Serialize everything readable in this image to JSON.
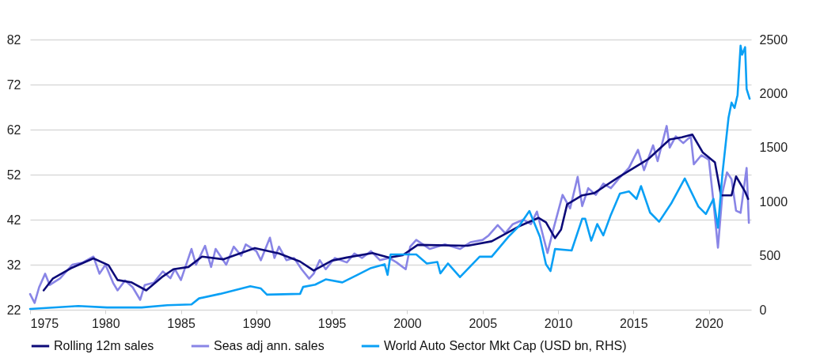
{
  "chart_data": {
    "type": "line",
    "xlim": [
      1975,
      2022.8
    ],
    "xticks": [
      1975,
      1980,
      1985,
      1990,
      1995,
      2000,
      2005,
      2010,
      2015,
      2020
    ],
    "ylim": [
      22,
      82
    ],
    "yticks": [
      22,
      32,
      42,
      52,
      62,
      72,
      82
    ],
    "y2lim": [
      0,
      2500
    ],
    "y2ticks": [
      0,
      500,
      1000,
      1500,
      2000,
      2500
    ],
    "grid": "y",
    "legend": "bottom",
    "line_style": "solid",
    "series": [
      {
        "name": "Rolling 12m sales",
        "color": "#0c0a78",
        "x": [
          1975.9,
          1976.5,
          1977.7,
          1979.2,
          1980.2,
          1980.8,
          1981.7,
          1982.7,
          1983.8,
          1984.5,
          1985.5,
          1986.4,
          1987.8,
          1989.9,
          1991.5,
          1992.9,
          1993.8,
          1995.0,
          1996.0,
          1997.7,
          1998.8,
          1999.7,
          2000.7,
          2004.0,
          2005.6,
          2007.4,
          2008.7,
          2009.2,
          2009.8,
          2010.2,
          2010.6,
          2011.6,
          2012.4,
          2014.0,
          2016.0,
          2017.4,
          2018.2,
          2018.9,
          2019.6,
          2020.4,
          2020.8,
          2021.5,
          2021.8,
          2022.4,
          2022.6
        ],
        "values": [
          26.3,
          28.9,
          31.2,
          33.4,
          31.9,
          28.6,
          28.1,
          26.3,
          29.4,
          31.0,
          31.5,
          33.8,
          33.2,
          35.7,
          34.5,
          32.7,
          30.7,
          32.9,
          33.6,
          34.6,
          33.6,
          34.1,
          36.4,
          36.2,
          37.2,
          40.5,
          42.4,
          41.4,
          37.9,
          39.8,
          45.4,
          47.4,
          47.9,
          51.4,
          55.5,
          59.8,
          60.3,
          60.9,
          56.9,
          54.7,
          47.4,
          47.4,
          51.6,
          48.2,
          46.6
        ]
      },
      {
        "name": "Seas adj ann. sales",
        "color": "#8985e6",
        "x": [
          1975.0,
          1975.3,
          1975.6,
          1976.0,
          1976.3,
          1977.0,
          1977.8,
          1978.5,
          1979.2,
          1979.6,
          1980.0,
          1980.5,
          1980.8,
          1981.3,
          1981.8,
          1982.3,
          1982.6,
          1983.2,
          1983.8,
          1984.3,
          1984.6,
          1985.0,
          1985.7,
          1986.0,
          1986.6,
          1987.0,
          1987.3,
          1988.0,
          1988.5,
          1989.0,
          1989.3,
          1990.0,
          1990.3,
          1990.9,
          1991.2,
          1991.5,
          1992.0,
          1992.5,
          1993.0,
          1993.5,
          1993.8,
          1994.2,
          1994.6,
          1995.2,
          1996.0,
          1996.5,
          1997.0,
          1997.6,
          1998.2,
          1998.8,
          1999.3,
          1999.9,
          2000.2,
          2000.6,
          2001.5,
          2002.5,
          2003.5,
          2004.2,
          2005.0,
          2005.4,
          2006.0,
          2006.5,
          2007.0,
          2007.7,
          2008.2,
          2008.6,
          2009.0,
          2009.3,
          2009.7,
          2010.3,
          2010.8,
          2011.3,
          2011.6,
          2012.0,
          2012.5,
          2013.0,
          2013.5,
          2014.0,
          2014.7,
          2015.3,
          2015.7,
          2016.3,
          2016.6,
          2017.2,
          2017.4,
          2017.8,
          2018.3,
          2018.8,
          2019.0,
          2019.5,
          2020.0,
          2020.3,
          2020.6,
          2020.9,
          2021.2,
          2021.5,
          2021.8,
          2022.1,
          2022.5,
          2022.65
        ],
        "values": [
          25.5,
          23.5,
          27,
          30,
          27.5,
          29,
          32,
          32.5,
          33.8,
          30,
          32,
          28,
          26.3,
          28.5,
          27,
          24.2,
          27.5,
          28,
          30.5,
          29,
          31,
          28.6,
          35.5,
          32,
          36.2,
          31.5,
          35.5,
          32,
          36,
          34,
          36.5,
          35,
          33,
          38,
          33.5,
          36,
          33,
          33.5,
          31,
          28.9,
          30,
          33,
          31,
          33.5,
          32.5,
          34.5,
          33.5,
          35,
          33,
          33.5,
          32.5,
          31,
          36,
          37.5,
          35.5,
          36.5,
          35.5,
          37,
          37.5,
          38.5,
          40.8,
          39,
          41,
          42,
          41,
          43.8,
          38.5,
          34.6,
          40,
          47.5,
          44.5,
          51.5,
          45,
          49,
          47.5,
          50,
          49,
          51,
          53.5,
          57.5,
          53,
          58.5,
          55,
          62.8,
          58,
          60.5,
          59,
          60.5,
          54.3,
          56.3,
          55.3,
          46,
          35.8,
          48,
          52.5,
          51,
          44,
          43.5,
          53.5,
          41.3
        ]
      },
      {
        "name": "World Auto Sector Mkt Cap (USD bn, RHS)",
        "color": "#0aa0f5",
        "axis": "y2",
        "x": [
          1975.0,
          1978.2,
          1980.1,
          1982.4,
          1984.1,
          1985.7,
          1986.2,
          1987.6,
          1989.6,
          1990.3,
          1990.7,
          1992.9,
          1993.1,
          1993.9,
          1994.6,
          1995.7,
          1996.7,
          1997.6,
          1998.5,
          1998.7,
          1998.9,
          1999.7,
          2000.6,
          2001.3,
          2002.0,
          2002.2,
          2002.7,
          2003.5,
          2004.8,
          2005.6,
          2006.7,
          2007.4,
          2008.1,
          2008.8,
          2009.2,
          2009.5,
          2009.8,
          2010.9,
          2011.6,
          2011.8,
          2012.2,
          2012.6,
          2013.0,
          2013.5,
          2014.1,
          2014.7,
          2015.2,
          2015.5,
          2016.1,
          2016.7,
          2017.5,
          2018.4,
          2019.3,
          2019.8,
          2020.3,
          2020.6,
          2020.8,
          2020.9,
          2021.3,
          2021.5,
          2021.7,
          2021.9,
          2022.1,
          2022.2,
          2022.4,
          2022.5,
          2022.7
        ],
        "values": [
          7,
          35,
          21,
          21,
          42,
          49,
          105,
          147,
          218,
          197,
          140,
          147,
          211,
          232,
          281,
          253,
          323,
          386,
          421,
          323,
          512,
          512,
          512,
          428,
          442,
          337,
          428,
          302,
          491,
          491,
          674,
          772,
          913,
          674,
          421,
          358,
          562,
          548,
          842,
          842,
          639,
          793,
          688,
          878,
          1074,
          1095,
          1025,
          1144,
          899,
          814,
          983,
          1214,
          955,
          885,
          1025,
          758,
          1095,
          1264,
          1776,
          1916,
          1867,
          1987,
          2443,
          2359,
          2429,
          2043,
          1952
        ]
      }
    ]
  }
}
